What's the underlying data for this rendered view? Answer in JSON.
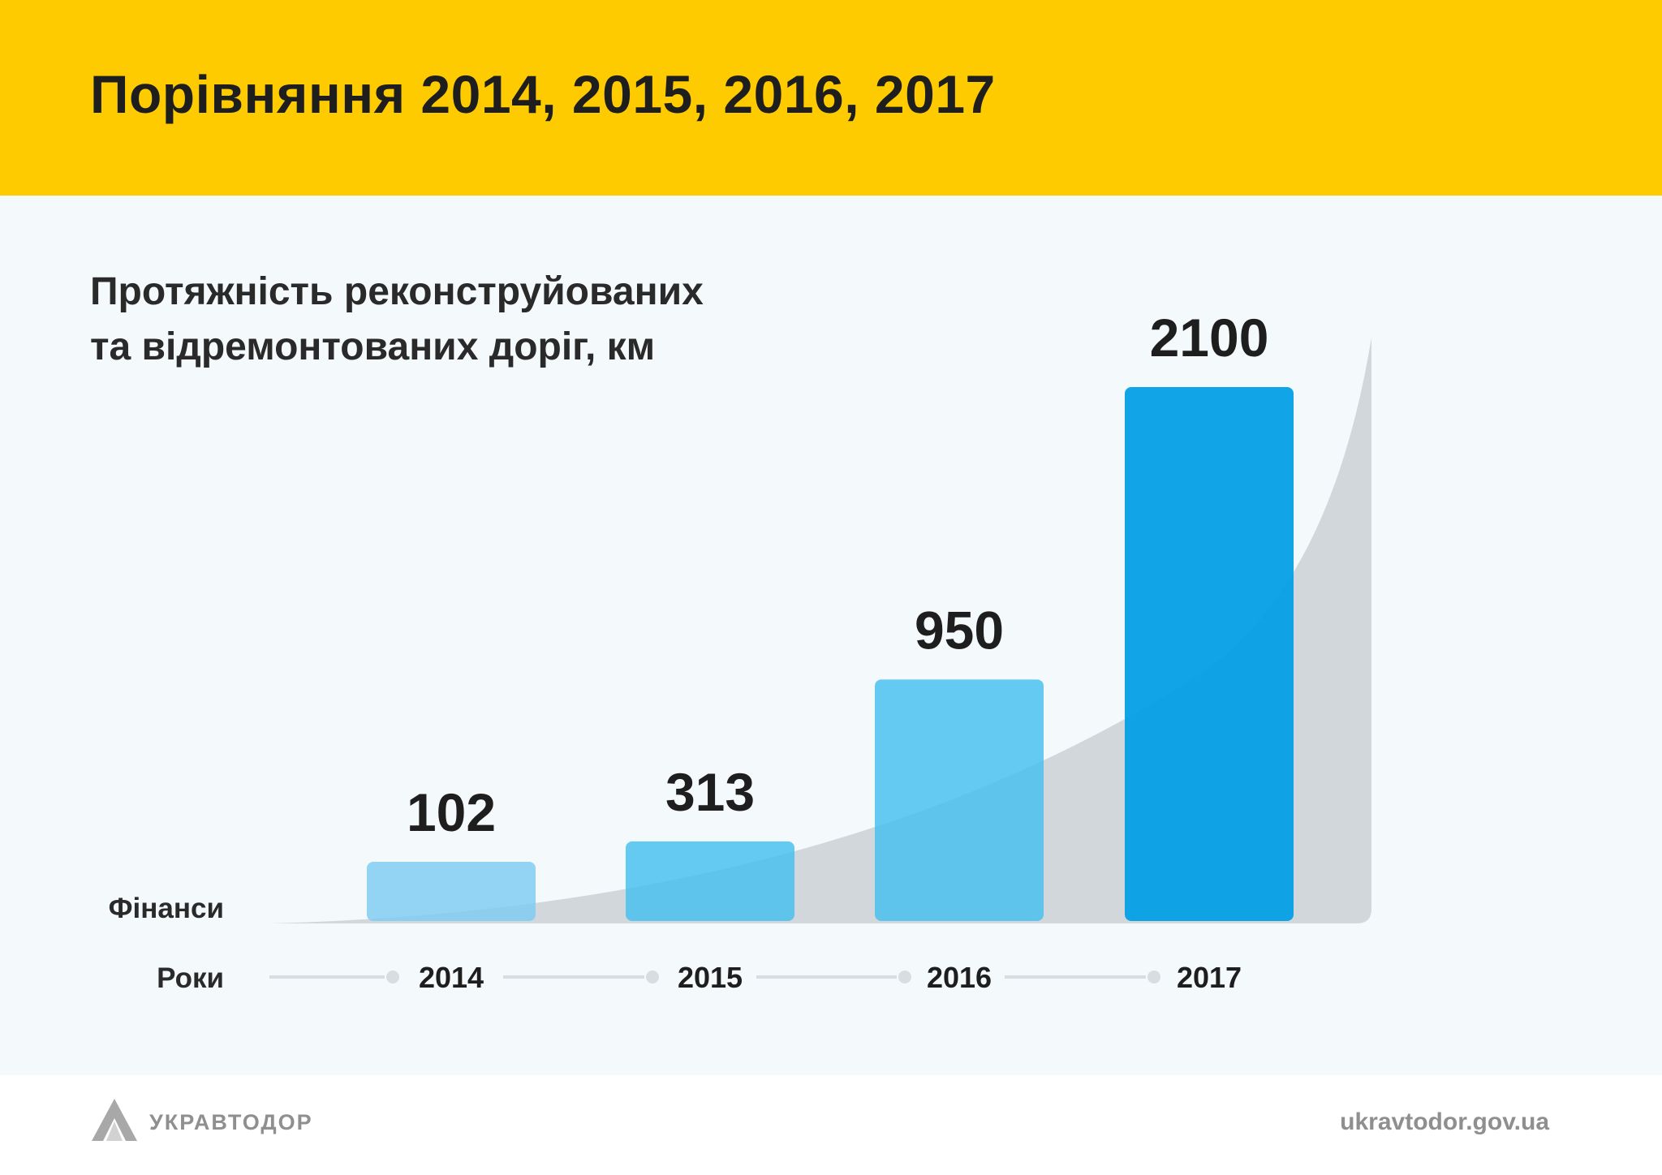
{
  "header": {
    "title": "Порівняння 2014, 2015, 2016, 2017"
  },
  "chart_data": {
    "type": "bar",
    "title_lines": [
      "Протяжність реконструйованих",
      "та відремонтованих доріг, км"
    ],
    "categories": [
      "2014",
      "2015",
      "2016",
      "2017"
    ],
    "values": [
      102,
      313,
      950,
      2100
    ],
    "row_labels": {
      "finance": "Фінанси",
      "years": "Роки"
    },
    "colors": {
      "bars": [
        "#7ecaf2",
        "#45bfef",
        "#45bfef",
        "#029fe6"
      ],
      "curve": "#c5c9ce",
      "timeline": "#d9dde1"
    },
    "legend": "none",
    "grid": false
  },
  "footer": {
    "logo_text": "УКРАВТОДОР",
    "site": "ukravtodor.gov.ua",
    "logo_icon": "ukravtodor-logo-icon"
  }
}
